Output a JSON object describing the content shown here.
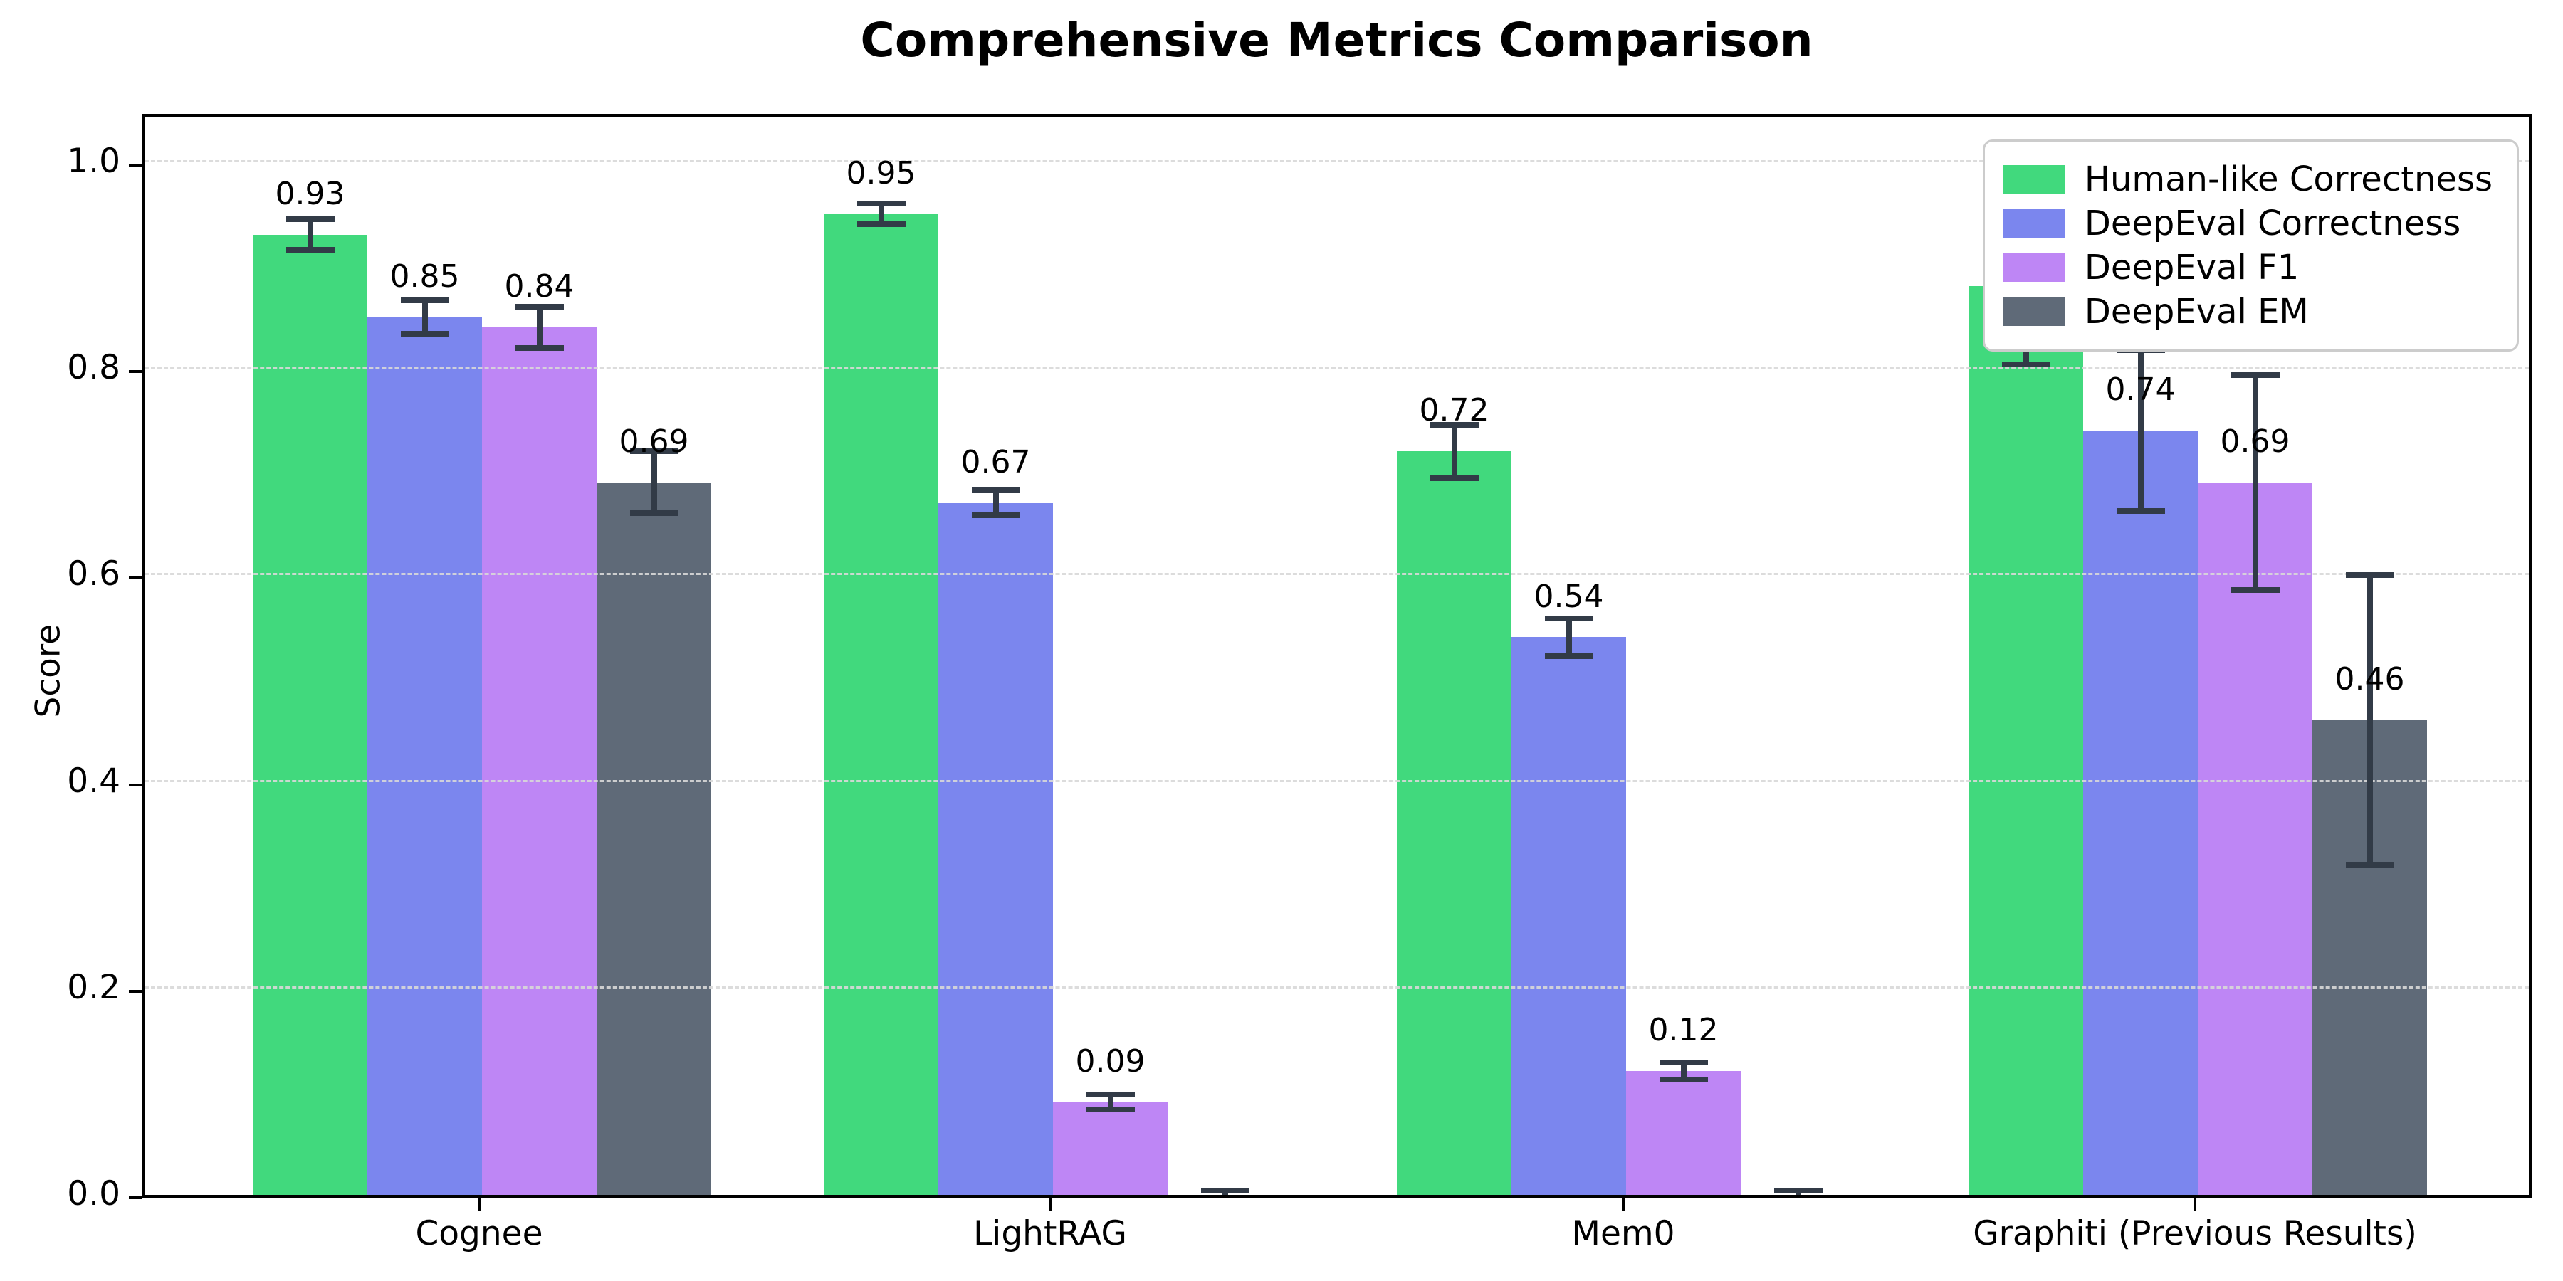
{
  "title": "Comprehensive Metrics Comparison",
  "chart_data": {
    "type": "bar",
    "title": "Comprehensive Metrics Comparison",
    "xlabel": "",
    "ylabel": "Score",
    "ylim": [
      0,
      1.05
    ],
    "yticks": [
      0.0,
      0.2,
      0.4,
      0.6,
      0.8,
      1.0
    ],
    "ytick_labels": [
      "0.0",
      "0.2",
      "0.4",
      "0.6",
      "0.8",
      "1.0"
    ],
    "grid": "horizontal-dashed, drawn above bars",
    "legend_position": "upper right",
    "categories": [
      "Cognee",
      "LightRAG",
      "Mem0",
      "Graphiti (Previous Results)"
    ],
    "series": [
      {
        "name": "Human-like Correctness",
        "color": "#41d97d",
        "values": [
          0.93,
          0.95,
          0.72,
          0.88
        ],
        "errors": [
          0.015,
          0.01,
          0.026,
          0.076
        ],
        "labels": [
          "0.93",
          "0.95",
          "0.72",
          "0.88"
        ]
      },
      {
        "name": "DeepEval Correctness",
        "color": "#7b86ee",
        "values": [
          0.85,
          0.67,
          0.54,
          0.74
        ],
        "errors": [
          0.016,
          0.012,
          0.018,
          0.078
        ],
        "labels": [
          "0.85",
          "0.67",
          "0.54",
          "0.74"
        ]
      },
      {
        "name": "DeepEval F1",
        "color": "#be86f5",
        "values": [
          0.84,
          0.09,
          0.12,
          0.69
        ],
        "errors": [
          0.02,
          0.007,
          0.008,
          0.104
        ],
        "labels": [
          "0.84",
          "0.09",
          "0.12",
          "0.69"
        ]
      },
      {
        "name": "DeepEval EM",
        "color": "#5f6a78",
        "values": [
          0.69,
          0.0,
          0.0,
          0.46
        ],
        "errors": [
          0.03,
          0.004,
          0.004,
          0.14
        ],
        "labels": [
          "0.69",
          "",
          "",
          "0.46"
        ]
      }
    ],
    "error_bar_color": "#323b47",
    "gridline_color": "#d9d9d9",
    "label_offset_units": 0.022
  },
  "legend": {
    "items": [
      "Human-like Correctness",
      "DeepEval Correctness",
      "DeepEval F1",
      "DeepEval EM"
    ]
  }
}
